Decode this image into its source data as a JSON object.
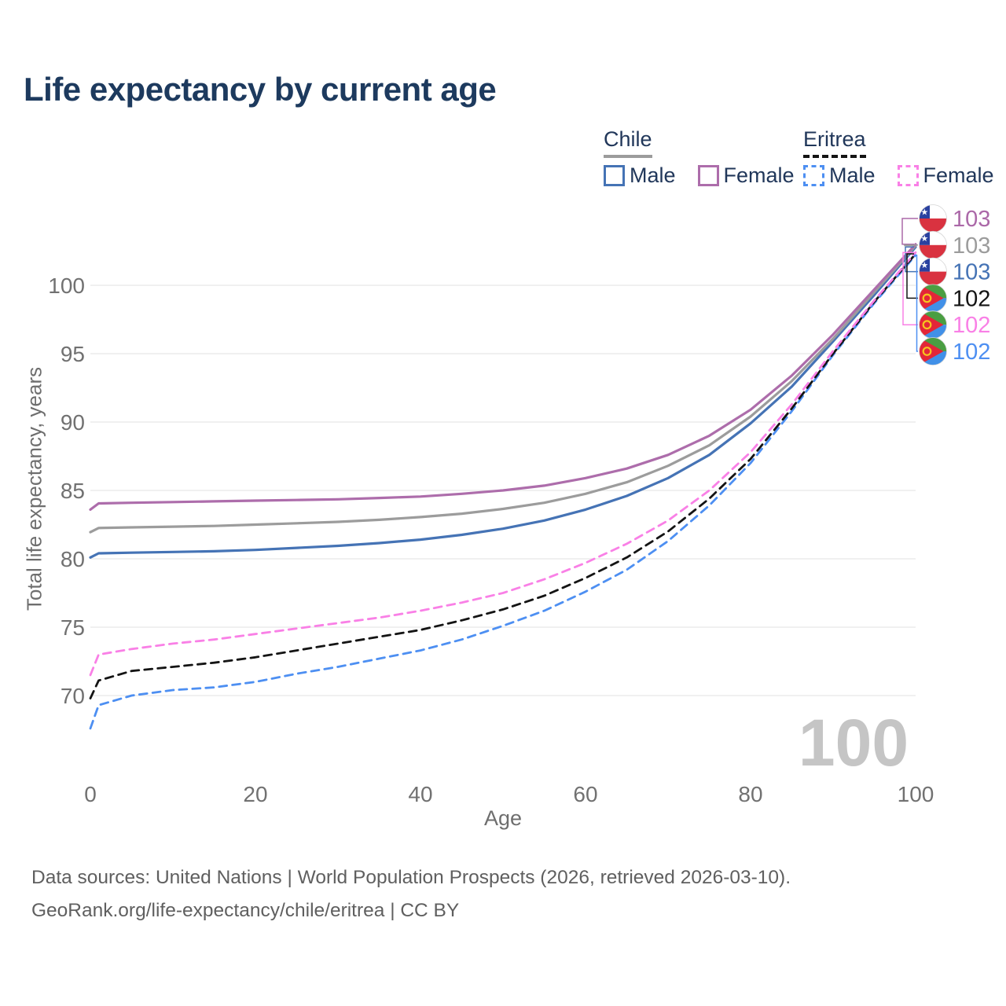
{
  "title": "Life expectancy by current age",
  "legend": {
    "groups": [
      {
        "name": "Chile",
        "underline_style": "solid",
        "underline_color": "#9c9c9c",
        "items": [
          {
            "label": "Male",
            "color": "#4573b5",
            "dashed": false
          },
          {
            "label": "Female",
            "color": "#ad6dab",
            "dashed": false
          }
        ]
      },
      {
        "name": "Eritrea",
        "underline_style": "dashed",
        "underline_color": "#141414",
        "items": [
          {
            "label": "Male",
            "color": "#4d8ff2",
            "dashed": true
          },
          {
            "label": "Female",
            "color": "#f980e6",
            "dashed": true
          }
        ]
      }
    ]
  },
  "chart_data": {
    "type": "line",
    "title": "Life expectancy by current age",
    "xlabel": "Age",
    "ylabel": "Total life expectancy, years",
    "x_ticks": [
      0,
      20,
      40,
      60,
      80,
      100
    ],
    "y_ticks": [
      70,
      75,
      80,
      85,
      90,
      95,
      100
    ],
    "xlim": [
      0,
      100
    ],
    "ylim": [
      66,
      104
    ],
    "grid": "horizontal",
    "legend_position": "top-right",
    "watermark": "100",
    "x": [
      0,
      1,
      5,
      10,
      15,
      20,
      25,
      30,
      35,
      40,
      45,
      50,
      55,
      60,
      65,
      70,
      75,
      80,
      85,
      90,
      95,
      100
    ],
    "series": [
      {
        "name": "Chile Male",
        "country": "Chile",
        "sex": "Male",
        "color": "#4573b5",
        "dashed": false,
        "values": [
          80.1,
          80.4,
          80.45,
          80.5,
          80.55,
          80.65,
          80.8,
          80.95,
          81.15,
          81.4,
          81.75,
          82.2,
          82.8,
          83.6,
          84.6,
          85.9,
          87.6,
          89.9,
          92.6,
          95.9,
          99.3,
          102.8
        ]
      },
      {
        "name": "Chile",
        "country": "Chile",
        "sex": "Both",
        "color": "#9c9c9c",
        "dashed": false,
        "values": [
          81.95,
          82.25,
          82.3,
          82.35,
          82.4,
          82.5,
          82.6,
          82.7,
          82.85,
          83.05,
          83.3,
          83.65,
          84.1,
          84.75,
          85.6,
          86.8,
          88.3,
          90.4,
          93.0,
          96.1,
          99.5,
          102.9
        ]
      },
      {
        "name": "Chile Female",
        "country": "Chile",
        "sex": "Female",
        "color": "#ad6dab",
        "dashed": false,
        "values": [
          83.6,
          84.05,
          84.1,
          84.15,
          84.2,
          84.25,
          84.3,
          84.35,
          84.45,
          84.55,
          84.75,
          85.0,
          85.35,
          85.9,
          86.6,
          87.6,
          89.0,
          90.9,
          93.4,
          96.4,
          99.7,
          103.0
        ]
      },
      {
        "name": "Eritrea Male",
        "country": "Eritrea",
        "sex": "Male",
        "color": "#4d8ff2",
        "dashed": true,
        "values": [
          67.6,
          69.3,
          70.0,
          70.4,
          70.6,
          71.0,
          71.6,
          72.1,
          72.7,
          73.3,
          74.1,
          75.1,
          76.2,
          77.6,
          79.2,
          81.3,
          83.9,
          87.0,
          90.8,
          94.9,
          98.7,
          102.2
        ]
      },
      {
        "name": "Eritrea",
        "country": "Eritrea",
        "sex": "Both",
        "color": "#141414",
        "dashed": true,
        "values": [
          69.8,
          71.1,
          71.8,
          72.1,
          72.4,
          72.8,
          73.3,
          73.8,
          74.3,
          74.8,
          75.5,
          76.3,
          77.3,
          78.6,
          80.1,
          82.0,
          84.4,
          87.3,
          91.0,
          95.0,
          98.8,
          102.3
        ]
      },
      {
        "name": "Eritrea Female",
        "country": "Eritrea",
        "sex": "Female",
        "color": "#f980e6",
        "dashed": true,
        "values": [
          71.5,
          73.0,
          73.4,
          73.8,
          74.1,
          74.5,
          74.9,
          75.3,
          75.7,
          76.2,
          76.8,
          77.5,
          78.5,
          79.7,
          81.1,
          82.8,
          85.0,
          87.8,
          91.3,
          95.2,
          98.9,
          102.4
        ]
      }
    ]
  },
  "right_labels": [
    {
      "flag": "chile",
      "value": "103",
      "series": "Chile Female",
      "color": "#ab68a8"
    },
    {
      "flag": "chile",
      "value": "103",
      "series": "Chile",
      "color": "#9c9c9c"
    },
    {
      "flag": "chile",
      "value": "103",
      "series": "Chile Male",
      "color": "#4573b5"
    },
    {
      "flag": "eritrea",
      "value": "102",
      "series": "Eritrea",
      "color": "#141414"
    },
    {
      "flag": "eritrea",
      "value": "102",
      "series": "Eritrea Female",
      "color": "#f980e6"
    },
    {
      "flag": "eritrea",
      "value": "102",
      "series": "Eritrea Male",
      "color": "#4d8ff2"
    }
  ],
  "footer": {
    "line1": "Data sources: United Nations | World Population Prospects (2026, retrieved 2026-03-10).",
    "line2": "GeoRank.org/life-expectancy/chile/eritrea | CC BY"
  }
}
